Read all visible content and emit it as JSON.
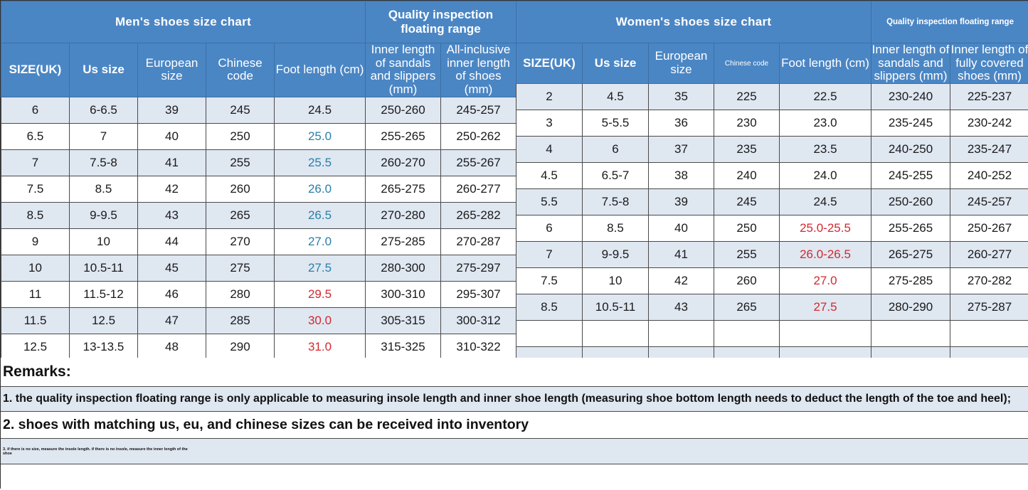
{
  "men": {
    "title": "Men's shoes size chart",
    "quality_label": "Quality inspection floating range",
    "headers": [
      "SIZE(UK)",
      "Us size",
      "European size",
      "Chinese code",
      "Foot length (cm)",
      "Inner length of sandals and slippers (mm)",
      "All-inclusive inner length of shoes (mm)"
    ],
    "rows": [
      [
        "6",
        "6-6.5",
        "39",
        "245",
        "24.5",
        "250-260",
        "245-257"
      ],
      [
        "6.5",
        "7",
        "40",
        "250",
        "25.0",
        "255-265",
        "250-262"
      ],
      [
        "7",
        "7.5-8",
        "41",
        "255",
        "25.5",
        "260-270",
        "255-267"
      ],
      [
        "7.5",
        "8.5",
        "42",
        "260",
        "26.0",
        "265-275",
        "260-277"
      ],
      [
        "8.5",
        "9-9.5",
        "43",
        "265",
        "26.5",
        "270-280",
        "265-282"
      ],
      [
        "9",
        "10",
        "44",
        "270",
        "27.0",
        "275-285",
        "270-287"
      ],
      [
        "10",
        "10.5-11",
        "45",
        "275",
        "27.5",
        "280-300",
        "275-297"
      ],
      [
        "11",
        "11.5-12",
        "46",
        "280",
        "29.5",
        "300-310",
        "295-307"
      ],
      [
        "11.5",
        "12.5",
        "47",
        "285",
        "30.0",
        "305-315",
        "300-312"
      ],
      [
        "12.5",
        "13-13.5",
        "48",
        "290",
        "31.0",
        "315-325",
        "310-322"
      ],
      [
        "",
        "",
        "",
        "",
        "",
        "",
        ""
      ]
    ]
  },
  "women": {
    "title": "Women's shoes size chart",
    "quality_label": "Quality inspection floating range",
    "headers": [
      "SIZE(UK)",
      "Us size",
      "European size",
      "Chinese code",
      "Foot length (cm)",
      "Inner length of sandals and slippers (mm)",
      "Inner length of fully covered shoes (mm)"
    ],
    "rows": [
      [
        "2",
        "4.5",
        "35",
        "225",
        "22.5",
        "230-240",
        "225-237"
      ],
      [
        "3",
        "5-5.5",
        "36",
        "230",
        "23.0",
        "235-245",
        "230-242"
      ],
      [
        "4",
        "6",
        "37",
        "235",
        "23.5",
        "240-250",
        "235-247"
      ],
      [
        "4.5",
        "6.5-7",
        "38",
        "240",
        "24.0",
        "245-255",
        "240-252"
      ],
      [
        "5.5",
        "7.5-8",
        "39",
        "245",
        "24.5",
        "250-260",
        "245-257"
      ],
      [
        "6",
        "8.5",
        "40",
        "250",
        "25.0-25.5",
        "255-265",
        "250-267"
      ],
      [
        "7",
        "9-9.5",
        "41",
        "255",
        "26.0-26.5",
        "265-275",
        "260-277"
      ],
      [
        "7.5",
        "10",
        "42",
        "260",
        "27.0",
        "275-285",
        "270-282"
      ],
      [
        "8.5",
        "10.5-11",
        "43",
        "265",
        "27.5",
        "280-290",
        "275-287"
      ],
      [
        "",
        "",
        "",
        "",
        "",
        "",
        ""
      ],
      [
        "",
        "",
        "",
        "",
        "",
        "",
        ""
      ]
    ]
  },
  "remarks": {
    "title": "Remarks:",
    "line1": "1. the quality inspection floating range is only applicable to measuring insole length and inner shoe length (measuring shoe bottom length needs to deduct the length of the toe and heel);",
    "line2": "2. shoes with matching us, eu, and chinese sizes can be received into inventory",
    "line3": "3. if there is no size, measure the insole length. if there is no insole, measure the inner length of the shoe"
  },
  "colors": {
    "header_blue": "#4b86c4",
    "row_alt": "#dfe7f1",
    "foot_teal": "#2a7fa8",
    "foot_red": "#d4282e"
  }
}
